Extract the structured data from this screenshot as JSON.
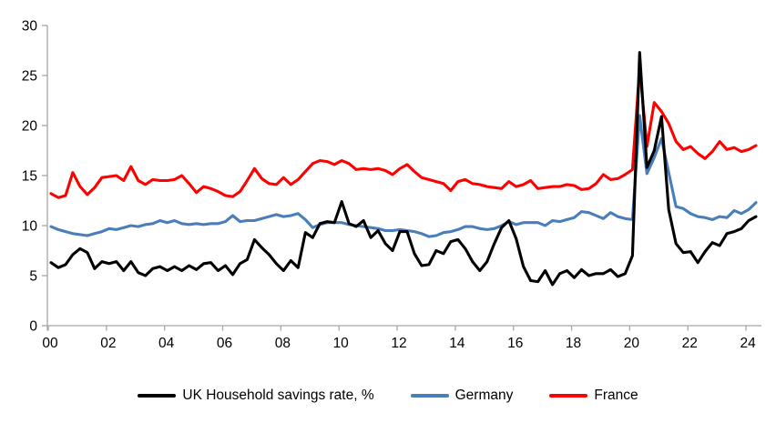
{
  "chart_data": {
    "type": "line",
    "title": "",
    "x_unit": "quarter",
    "x_start": "2000Q1",
    "x_end": "2024Q2",
    "x_tick_labels": [
      "00",
      "02",
      "04",
      "06",
      "08",
      "10",
      "12",
      "14",
      "16",
      "18",
      "20",
      "22",
      "24"
    ],
    "y_ticks": [
      "0",
      "5",
      "10",
      "15",
      "20",
      "25",
      "30"
    ],
    "ylim": [
      0,
      30
    ],
    "grid": false,
    "legend_position": "bottom",
    "axis_color": "#a6a6a6",
    "background_color": "#ffffff",
    "series": [
      {
        "name": "UK Household savings rate, %",
        "color": "#000000",
        "values": [
          6.3,
          5.8,
          6.1,
          7.1,
          7.7,
          7.3,
          5.7,
          6.4,
          6.2,
          6.4,
          5.5,
          6.4,
          5.3,
          5.0,
          5.7,
          5.9,
          5.5,
          5.9,
          5.5,
          6.0,
          5.6,
          6.2,
          6.3,
          5.5,
          6.0,
          5.1,
          6.2,
          6.6,
          8.6,
          7.8,
          7.1,
          6.2,
          5.5,
          6.5,
          5.8,
          9.3,
          8.8,
          10.2,
          10.4,
          10.3,
          12.4,
          10.2,
          9.9,
          10.5,
          8.8,
          9.5,
          8.2,
          7.5,
          9.4,
          9.4,
          7.2,
          6.0,
          6.1,
          7.5,
          7.2,
          8.4,
          8.6,
          7.7,
          6.4,
          5.5,
          6.4,
          8.2,
          9.8,
          10.5,
          8.7,
          5.9,
          4.5,
          4.4,
          5.5,
          4.1,
          5.2,
          5.5,
          4.8,
          5.6,
          5.0,
          5.2,
          5.2,
          5.6,
          4.9,
          5.2,
          7.0,
          27.3,
          15.8,
          17.5,
          20.9,
          11.6,
          8.2,
          7.3,
          7.4,
          6.3,
          7.4,
          8.3,
          8.0,
          9.2,
          9.4,
          9.7,
          10.5,
          10.9
        ]
      },
      {
        "name": "Germany",
        "color": "#4a7ebb",
        "values": [
          9.9,
          9.6,
          9.4,
          9.2,
          9.1,
          9.0,
          9.2,
          9.4,
          9.7,
          9.6,
          9.8,
          10.0,
          9.9,
          10.1,
          10.2,
          10.5,
          10.3,
          10.5,
          10.2,
          10.1,
          10.2,
          10.1,
          10.2,
          10.2,
          10.4,
          11.0,
          10.4,
          10.5,
          10.5,
          10.7,
          10.9,
          11.1,
          10.9,
          11.0,
          11.2,
          10.6,
          9.8,
          10.1,
          10.3,
          10.3,
          10.3,
          10.1,
          10.0,
          9.9,
          9.8,
          9.7,
          9.5,
          9.5,
          9.6,
          9.5,
          9.4,
          9.2,
          8.9,
          9.0,
          9.3,
          9.4,
          9.6,
          9.9,
          9.9,
          9.7,
          9.6,
          9.7,
          10.0,
          10.4,
          10.1,
          10.3,
          10.3,
          10.3,
          10.0,
          10.5,
          10.4,
          10.6,
          10.8,
          11.4,
          11.3,
          11.0,
          10.7,
          11.3,
          10.9,
          10.7,
          10.6,
          21.0,
          15.2,
          16.8,
          18.7,
          15.3,
          11.9,
          11.7,
          11.2,
          10.9,
          10.8,
          10.6,
          10.9,
          10.8,
          11.5,
          11.2,
          11.6,
          12.3
        ]
      },
      {
        "name": "France",
        "color": "#ff0000",
        "values": [
          13.2,
          12.8,
          13.0,
          15.3,
          13.9,
          13.1,
          13.8,
          14.8,
          14.9,
          15.0,
          14.5,
          15.9,
          14.5,
          14.1,
          14.6,
          14.5,
          14.5,
          14.6,
          15.0,
          14.2,
          13.3,
          13.9,
          13.7,
          13.4,
          13.0,
          12.9,
          13.4,
          14.5,
          15.7,
          14.7,
          14.2,
          14.1,
          14.8,
          14.1,
          14.6,
          15.4,
          16.2,
          16.5,
          16.4,
          16.1,
          16.5,
          16.2,
          15.6,
          15.7,
          15.6,
          15.7,
          15.5,
          15.1,
          15.7,
          16.1,
          15.4,
          14.8,
          14.6,
          14.4,
          14.2,
          13.5,
          14.4,
          14.6,
          14.2,
          14.1,
          13.9,
          13.8,
          13.7,
          14.4,
          13.9,
          14.1,
          14.5,
          13.7,
          13.8,
          13.9,
          13.9,
          14.1,
          14.0,
          13.6,
          13.7,
          14.2,
          15.1,
          14.6,
          14.7,
          15.1,
          15.6,
          25.8,
          17.9,
          22.3,
          21.4,
          20.2,
          18.4,
          17.6,
          17.9,
          17.2,
          16.7,
          17.4,
          18.4,
          17.6,
          17.8,
          17.4,
          17.6,
          18.0
        ]
      }
    ]
  }
}
